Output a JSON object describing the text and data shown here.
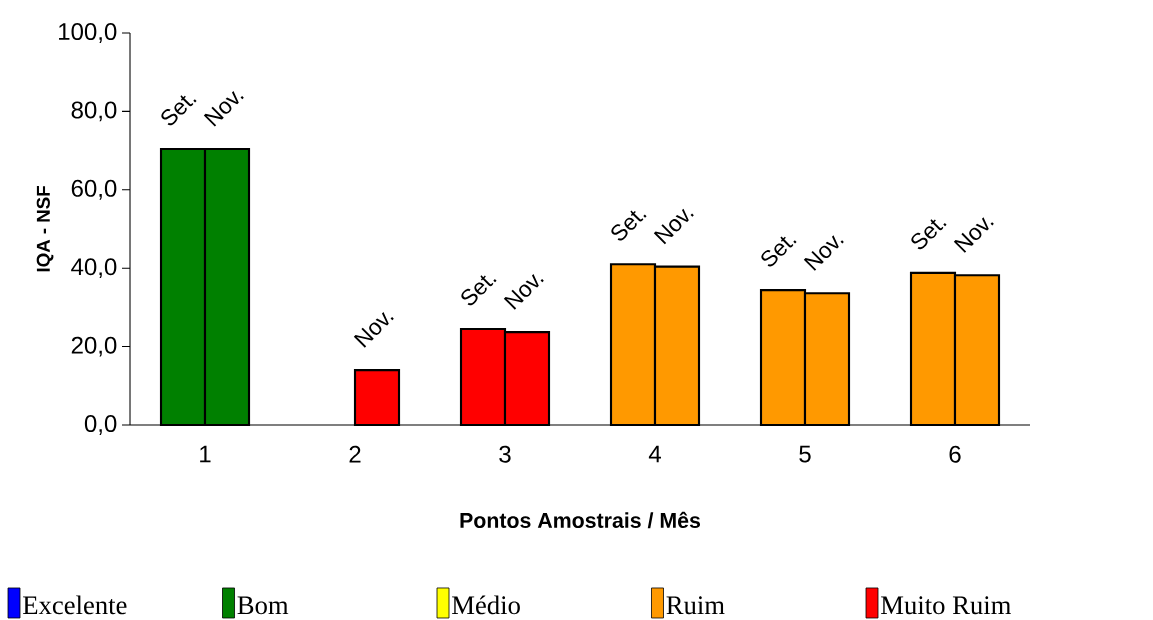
{
  "chart_data": {
    "type": "bar",
    "xlabel": "Pontos Amostrais / Mês",
    "ylabel": "IQA - NSF",
    "categories": [
      "1",
      "2",
      "3",
      "4",
      "5",
      "6"
    ],
    "series": [
      {
        "name": "Set.",
        "values": [
          70.4,
          null,
          24.5,
          41.0,
          34.4,
          38.8
        ],
        "colors": [
          "#008000",
          "#ff0000",
          "#ff0000",
          "#ff9900",
          "#ff9900",
          "#ff9900"
        ]
      },
      {
        "name": "Nov.",
        "values": [
          70.4,
          14.0,
          23.7,
          40.4,
          33.6,
          38.2
        ],
        "colors": [
          "#008000",
          "#ff0000",
          "#ff0000",
          "#ff9900",
          "#ff9900",
          "#ff9900"
        ]
      },
      {
        "name": "Excelente",
        "color": "#0000ff",
        "values": [
          null,
          null,
          null,
          null,
          null,
          null
        ]
      },
      {
        "name": "Bom",
        "color": "#008000",
        "values": [
          null,
          null,
          null,
          null,
          null,
          null
        ]
      },
      {
        "name": "Médio",
        "color": "#ffff00",
        "values": [
          null,
          null,
          null,
          null,
          null,
          null
        ]
      },
      {
        "name": "Ruim",
        "color": "#ff9900",
        "values": [
          null,
          null,
          null,
          null,
          null,
          null
        ]
      },
      {
        "name": "Muito Ruim",
        "color": "#ff0000",
        "values": [
          null,
          null,
          null,
          null,
          null,
          null
        ]
      }
    ],
    "ylim": [
      0,
      100
    ],
    "yticks": [
      {
        "value": 0,
        "label": "0,0"
      },
      {
        "value": 20,
        "label": "20,0"
      },
      {
        "value": 40,
        "label": "40,0"
      },
      {
        "value": 60,
        "label": "60,0"
      },
      {
        "value": 80,
        "label": "80,0"
      },
      {
        "value": 100,
        "label": "100,0"
      }
    ],
    "grid": false,
    "legend": "bottom"
  }
}
